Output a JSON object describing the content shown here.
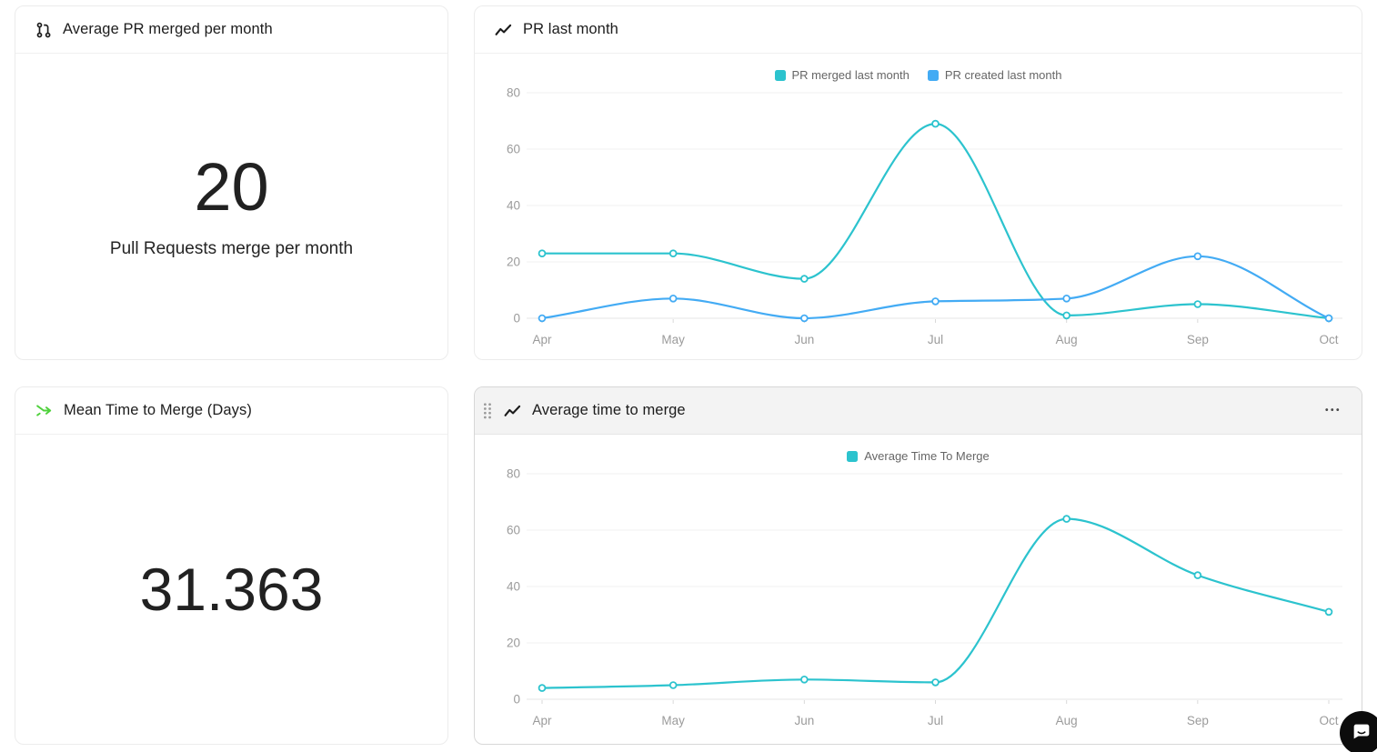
{
  "cards": {
    "avg_pr_merged": {
      "title": "Average PR merged per month",
      "icon": "pull-request-icon",
      "value": "20",
      "subtitle": "Pull Requests merge per month"
    },
    "pr_last_month": {
      "title": "PR last month",
      "icon": "chart-line-icon"
    },
    "mean_time_to_merge": {
      "title": "Mean Time to Merge (Days)",
      "icon": "merge-arrow-icon",
      "value": "31.363"
    },
    "avg_time_to_merge": {
      "title": "Average time to merge",
      "icon": "chart-line-icon",
      "drag_handle_icon": "drag-handle-icon",
      "menu_label": "•••",
      "selected": true
    }
  },
  "chart_data": [
    {
      "type": "line",
      "title": "PR last month",
      "categories": [
        "Apr",
        "May",
        "Jun",
        "Jul",
        "Aug",
        "Sep",
        "Oct"
      ],
      "series": [
        {
          "name": "PR merged last month",
          "color": "#2cc3ce",
          "values": [
            23,
            23,
            14,
            69,
            1,
            5,
            0
          ]
        },
        {
          "name": "PR created last month",
          "color": "#43abf4",
          "values": [
            0,
            7,
            0,
            6,
            7,
            22,
            0
          ]
        }
      ],
      "ylim": [
        0,
        80
      ],
      "yticks": [
        0,
        20,
        40,
        60,
        80
      ],
      "legend_position": "top",
      "grid": true
    },
    {
      "type": "line",
      "title": "Average time to merge",
      "categories": [
        "Apr",
        "May",
        "Jun",
        "Jul",
        "Aug",
        "Sep",
        "Oct"
      ],
      "series": [
        {
          "name": "Average Time To Merge",
          "color": "#2cc3ce",
          "values": [
            4,
            5,
            7,
            6,
            64,
            44,
            31
          ]
        }
      ],
      "ylim": [
        0,
        80
      ],
      "yticks": [
        0,
        20,
        40,
        60,
        80
      ],
      "legend_position": "top",
      "grid": true
    }
  ],
  "colors": {
    "teal": "#2cc3ce",
    "blue": "#43abf4",
    "green_icon": "#4fd13c",
    "axis_label": "#9b9b9b",
    "gridline": "#f1f1f1",
    "axis_line": "#e4e4e4",
    "tick": "#d9d9d9",
    "legend_label": "#666666",
    "card_border": "#ececec",
    "selected_card_border": "#d7d7d7",
    "selected_header_bg": "#f3f3f3",
    "launcher_bg": "#0c0c0c"
  },
  "chat_launcher": {
    "icon": "chat-bubble-icon"
  }
}
